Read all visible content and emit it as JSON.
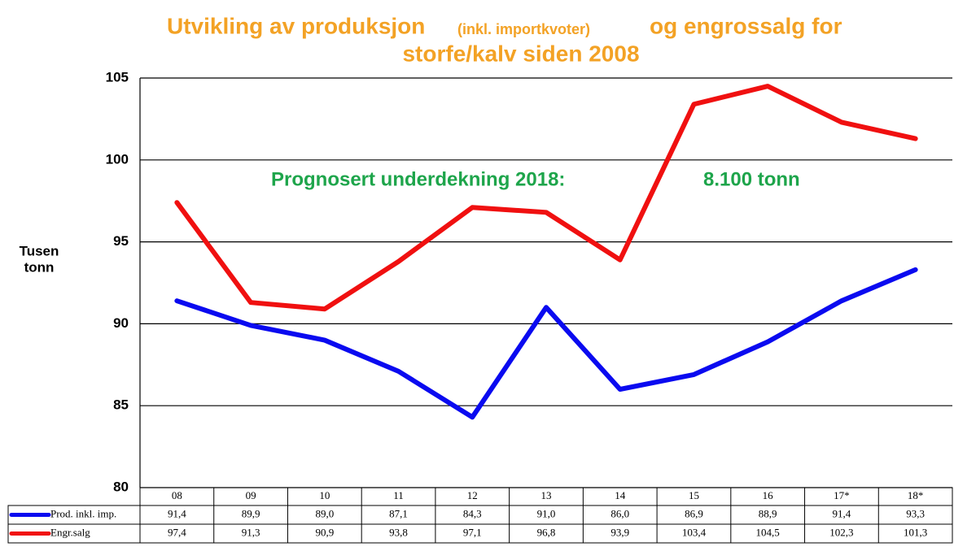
{
  "chart_data": {
    "type": "line",
    "title": [
      "Utvikling av produksjon",
      "(inkl. importkvoter)",
      "og engrossalg for",
      "storfe/kalv siden 2008"
    ],
    "ylabel": [
      "Tusen",
      "tonn"
    ],
    "annotation": [
      "Prognosert underdekning 2018:",
      "8.100 tonn"
    ],
    "categories": [
      "08",
      "09",
      "10",
      "11",
      "12",
      "13",
      "14",
      "15",
      "16",
      "17*",
      "18*"
    ],
    "series": [
      {
        "name": "Prod. inkl. imp.",
        "color": "#0a0af0",
        "values": [
          91.4,
          89.9,
          89.0,
          87.1,
          84.3,
          91.0,
          86.0,
          86.9,
          88.9,
          91.4,
          93.3
        ],
        "value_labels": [
          "91,4",
          "89,9",
          "89,0",
          "87,1",
          "84,3",
          "91,0",
          "86,0",
          "86,9",
          "88,9",
          "91,4",
          "93,3"
        ]
      },
      {
        "name": "Engr.salg",
        "color": "#f01010",
        "values": [
          97.4,
          91.3,
          90.9,
          93.8,
          97.1,
          96.8,
          93.9,
          103.4,
          104.5,
          102.3,
          101.3
        ],
        "value_labels": [
          "97,4",
          "91,3",
          "90,9",
          "93,8",
          "97,1",
          "96,8",
          "93,9",
          "103,4",
          "104,5",
          "102,3",
          "101,3"
        ]
      }
    ],
    "ylim": [
      80,
      105
    ],
    "yticks": [
      80,
      85,
      90,
      95,
      100,
      105
    ],
    "grid": true
  }
}
